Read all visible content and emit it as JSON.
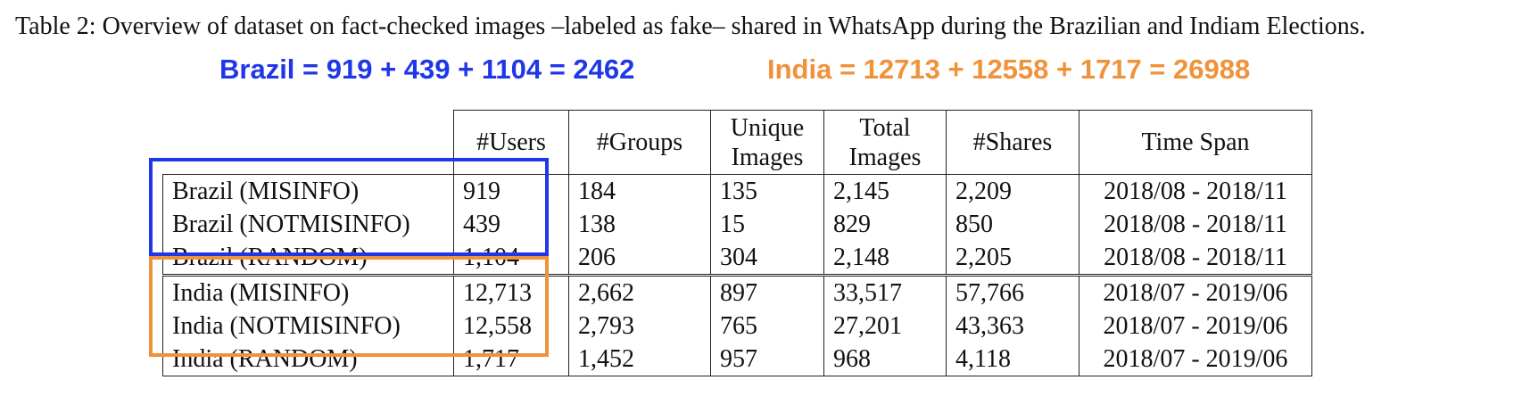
{
  "caption": "Table 2: Overview of dataset on fact-checked images –labeled as fake– shared in WhatsApp during the Brazilian and Indiam Elections.",
  "annotations": {
    "brazil": "Brazil = 919 + 439 + 1104 = 2462",
    "india": "India = 12713 + 12558 + 1717 = 26988"
  },
  "colors": {
    "brazil_highlight": "#1f37e6",
    "india_highlight": "#f0923a"
  },
  "table": {
    "headers": {
      "users": "#Users",
      "groups": "#Groups",
      "unique_line1": "Unique",
      "unique_line2": "Images",
      "total_line1": "Total",
      "total_line2": "Images",
      "shares": "#Shares",
      "time_span": "Time Span"
    },
    "rows": [
      {
        "label": "Brazil (MISINFO)",
        "users": "919",
        "groups": "184",
        "unique": "135",
        "total": "2,145",
        "shares": "2,209",
        "span": "2018/08 - 2018/11"
      },
      {
        "label": "Brazil (NOTMISINFO)",
        "users": "439",
        "groups": "138",
        "unique": "15",
        "total": "829",
        "shares": "850",
        "span": "2018/08 - 2018/11"
      },
      {
        "label": "Brazil (RANDOM)",
        "users": "1,104",
        "groups": "206",
        "unique": "304",
        "total": "2,148",
        "shares": "2,205",
        "span": "2018/08 - 2018/11"
      },
      {
        "label": "India (MISINFO)",
        "users": "12,713",
        "groups": "2,662",
        "unique": "897",
        "total": "33,517",
        "shares": "57,766",
        "span": "2018/07 - 2019/06"
      },
      {
        "label": "India (NOTMISINFO)",
        "users": "12,558",
        "groups": "2,793",
        "unique": "765",
        "total": "27,201",
        "shares": "43,363",
        "span": "2018/07 - 2019/06"
      },
      {
        "label": "India (RANDOM)",
        "users": "1,717",
        "groups": "1,452",
        "unique": "957",
        "total": "968",
        "shares": "4,118",
        "span": "2018/07 - 2019/06"
      }
    ]
  }
}
